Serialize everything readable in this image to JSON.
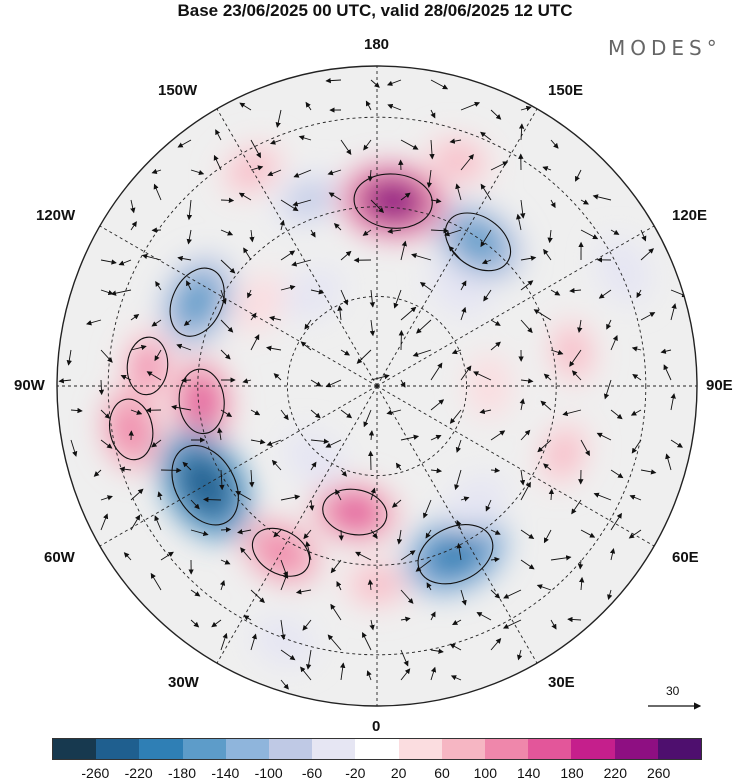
{
  "title": "Base 23/06/2025 00 UTC, valid 28/06/2025 12 UTC",
  "logo": "MODES°",
  "longitude_labels": {
    "top": "180",
    "bottom": "0",
    "left": "90W",
    "right": "90E",
    "upper_left_1": "150W",
    "upper_left_2": "120W",
    "upper_right_1": "150E",
    "upper_right_2": "120E",
    "lower_left_1": "60W",
    "lower_left_2": "30W",
    "lower_right_1": "60E",
    "lower_right_2": "30E"
  },
  "vector_scale_label": "30",
  "colorbar": {
    "colors": [
      "#17394f",
      "#1f5f8f",
      "#2f7fb5",
      "#5d9cc9",
      "#8fb5dc",
      "#bfc9e5",
      "#e6e6f3",
      "#ffffff",
      "#fbdde0",
      "#f6b6c3",
      "#ef87ab",
      "#e3569a",
      "#c51f8c",
      "#8e0f82",
      "#4e0f6e"
    ],
    "tick_labels": [
      "-260",
      "-220",
      "-180",
      "-140",
      "-100",
      "-60",
      "-20",
      "20",
      "60",
      "100",
      "140",
      "180",
      "220",
      "260"
    ]
  },
  "anomalies": [
    {
      "lon": -160,
      "r": 0.62,
      "value": -80
    },
    {
      "lon": -150,
      "r": 0.78,
      "value": 60
    },
    {
      "lon": -125,
      "r": 0.45,
      "value": 40
    },
    {
      "lon": -115,
      "r": 0.62,
      "value": -180
    },
    {
      "lon": -95,
      "r": 0.72,
      "value": 100
    },
    {
      "lon": -85,
      "r": 0.55,
      "value": 140
    },
    {
      "lon": -80,
      "r": 0.78,
      "value": 120
    },
    {
      "lon": -60,
      "r": 0.62,
      "value": -260
    },
    {
      "lon": -30,
      "r": 0.6,
      "value": 120
    },
    {
      "lon": -10,
      "r": 0.4,
      "value": 140
    },
    {
      "lon": 0,
      "r": 0.62,
      "value": 60
    },
    {
      "lon": 25,
      "r": 0.58,
      "value": -220
    },
    {
      "lon": 40,
      "r": 0.48,
      "value": -60
    },
    {
      "lon": 70,
      "r": 0.62,
      "value": 60
    },
    {
      "lon": 90,
      "r": 0.35,
      "value": 40
    },
    {
      "lon": 100,
      "r": 0.62,
      "value": 60
    },
    {
      "lon": 115,
      "r": 0.85,
      "value": -60
    },
    {
      "lon": 140,
      "r": 0.4,
      "value": -60
    },
    {
      "lon": 145,
      "r": 0.55,
      "value": -180
    },
    {
      "lon": 160,
      "r": 0.75,
      "value": 60
    },
    {
      "lon": 175,
      "r": 0.58,
      "value": 220
    },
    {
      "lon": -145,
      "r": 0.35,
      "value": -40
    },
    {
      "lon": -40,
      "r": 0.3,
      "value": -60
    },
    {
      "lon": -20,
      "r": 0.85,
      "value": -40
    }
  ]
}
